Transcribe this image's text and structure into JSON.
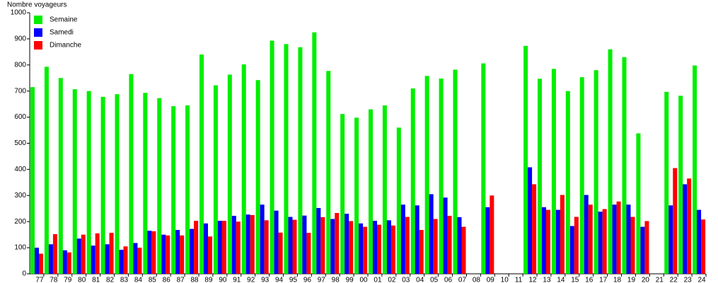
{
  "chart_data": {
    "type": "grouped-bar",
    "y_label": "Nombre voyageurs",
    "categories": [
      "77",
      "78",
      "79",
      "80",
      "81",
      "82",
      "83",
      "84",
      "85",
      "86",
      "87",
      "88",
      "89",
      "90",
      "91",
      "92",
      "93",
      "94",
      "95",
      "96",
      "97",
      "98",
      "99",
      "00",
      "01",
      "02",
      "03",
      "04",
      "05",
      "06",
      "07",
      "08",
      "09",
      "10",
      "11",
      "12",
      "13",
      "14",
      "15",
      "16",
      "17",
      "18",
      "19",
      "20",
      "21",
      "22",
      "23",
      "24"
    ],
    "series": [
      {
        "name": "Semaine",
        "color": "#00ee00",
        "values": [
          715,
          793,
          750,
          707,
          700,
          678,
          688,
          765,
          693,
          673,
          642,
          645,
          840,
          722,
          763,
          802,
          742,
          893,
          880,
          868,
          925,
          777,
          612,
          598,
          630,
          645,
          560,
          710,
          758,
          748,
          782,
          null,
          806,
          null,
          null,
          873,
          747,
          785,
          700,
          753,
          780,
          860,
          830,
          538,
          null,
          697,
          682,
          798
        ]
      },
      {
        "name": "Samedi",
        "color": "#0000ff",
        "values": [
          100,
          113,
          90,
          135,
          108,
          113,
          92,
          118,
          165,
          150,
          168,
          172,
          193,
          203,
          222,
          227,
          265,
          242,
          218,
          223,
          252,
          210,
          230,
          193,
          203,
          205,
          265,
          262,
          305,
          292,
          217,
          null,
          255,
          null,
          null,
          408,
          255,
          245,
          183,
          302,
          238,
          265,
          265,
          180,
          null,
          262,
          343,
          245
        ]
      },
      {
        "name": "Dimanche",
        "color": "#ff0000",
        "values": [
          77,
          152,
          82,
          150,
          155,
          157,
          105,
          100,
          163,
          147,
          147,
          203,
          143,
          203,
          200,
          225,
          205,
          158,
          207,
          157,
          217,
          233,
          202,
          180,
          188,
          185,
          218,
          168,
          210,
          222,
          180,
          null,
          300,
          null,
          null,
          343,
          245,
          302,
          218,
          265,
          248,
          277,
          218,
          202,
          null,
          405,
          365,
          208
        ]
      }
    ],
    "ylim": [
      0,
      1000
    ],
    "yticks": [
      0,
      100,
      200,
      300,
      400,
      500,
      600,
      700,
      800,
      900,
      1000
    ],
    "grid": false,
    "legend": "top-left"
  }
}
